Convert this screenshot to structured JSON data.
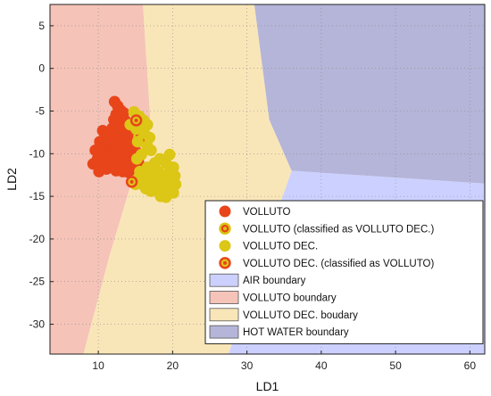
{
  "chart_data": {
    "type": "scatter",
    "xlabel": "LD1",
    "ylabel": "LD2",
    "xlim": [
      3.5,
      62
    ],
    "ylim": [
      -33.5,
      7.5
    ],
    "xticks": [
      10,
      20,
      30,
      40,
      50,
      60
    ],
    "yticks": [
      5,
      0,
      -5,
      -10,
      -15,
      -20,
      -25,
      -30
    ],
    "grid": true,
    "legend_position": "bottom-right",
    "regions": [
      {
        "name": "AIR boundary",
        "color": "#ccd0ff",
        "polygon": [
          [
            27.5,
            -33.5
          ],
          [
            36,
            -12
          ],
          [
            62,
            -13.5
          ],
          [
            62,
            -33.5
          ]
        ]
      },
      {
        "name": "VOLLUTO boundary",
        "color": "#f5c3b8",
        "polygon": [
          [
            3.5,
            7.5
          ],
          [
            16,
            7.5
          ],
          [
            17,
            -6
          ],
          [
            11.5,
            -22
          ],
          [
            8,
            -33.5
          ],
          [
            3.5,
            -33.5
          ]
        ]
      },
      {
        "name": "VOLLUTO DEC. boudary",
        "color": "#f9e6b8",
        "polygon": [
          [
            16,
            7.5
          ],
          [
            31,
            7.5
          ],
          [
            33,
            -6
          ],
          [
            36,
            -12
          ],
          [
            27.5,
            -33.5
          ],
          [
            8,
            -33.5
          ],
          [
            11.5,
            -22
          ],
          [
            17,
            -6
          ]
        ]
      },
      {
        "name": "HOT WATER boundary",
        "color": "#b4b5d8",
        "polygon": [
          [
            31,
            7.5
          ],
          [
            62,
            7.5
          ],
          [
            62,
            -13.5
          ],
          [
            36,
            -12
          ],
          [
            33,
            -6
          ]
        ]
      }
    ],
    "series": [
      {
        "name": "VOLLUTO",
        "color": "#e8451a",
        "points": [
          [
            12.2,
            -3.9
          ],
          [
            12.6,
            -4.4
          ],
          [
            13.0,
            -4.9
          ],
          [
            12.4,
            -5.4
          ],
          [
            13.4,
            -5.2
          ],
          [
            12.1,
            -6.0
          ],
          [
            12.8,
            -6.4
          ],
          [
            13.6,
            -6.1
          ],
          [
            11.9,
            -7.0
          ],
          [
            12.6,
            -7.3
          ],
          [
            13.3,
            -7.0
          ],
          [
            14.0,
            -7.5
          ],
          [
            11.5,
            -7.8
          ],
          [
            12.2,
            -8.2
          ],
          [
            13.0,
            -8.0
          ],
          [
            13.8,
            -8.4
          ],
          [
            14.5,
            -8.0
          ],
          [
            15.0,
            -8.8
          ],
          [
            10.6,
            -7.3
          ],
          [
            10.9,
            -7.8
          ],
          [
            10.2,
            -8.6
          ],
          [
            10.9,
            -9.1
          ],
          [
            11.6,
            -9.0
          ],
          [
            12.3,
            -9.3
          ],
          [
            13.1,
            -9.1
          ],
          [
            13.9,
            -9.4
          ],
          [
            14.6,
            -9.2
          ],
          [
            15.1,
            -9.8
          ],
          [
            9.6,
            -9.6
          ],
          [
            10.4,
            -9.9
          ],
          [
            11.1,
            -10.1
          ],
          [
            11.8,
            -10.2
          ],
          [
            12.6,
            -10.3
          ],
          [
            13.4,
            -10.1
          ],
          [
            14.2,
            -10.5
          ],
          [
            14.9,
            -10.3
          ],
          [
            9.9,
            -10.6
          ],
          [
            10.6,
            -11.0
          ],
          [
            11.4,
            -11.0
          ],
          [
            12.1,
            -11.2
          ],
          [
            12.9,
            -11.1
          ],
          [
            13.6,
            -11.4
          ],
          [
            14.4,
            -11.6
          ],
          [
            9.3,
            -11.2
          ],
          [
            11.1,
            -11.8
          ],
          [
            12.4,
            -12.0
          ],
          [
            13.3,
            -12.1
          ],
          [
            14.1,
            -12.2
          ],
          [
            10.1,
            -12.1
          ],
          [
            15.4,
            -11.0
          ],
          [
            15.6,
            -12.0
          ],
          [
            14.7,
            -8.6
          ],
          [
            11.3,
            -8.4
          ],
          [
            13.0,
            -6.8
          ]
        ]
      },
      {
        "name": "VOLLUTO (classified as VOLLUTO DEC.)",
        "color": "#e8451a",
        "ring_color": "#d9c413",
        "points": [
          [
            15.5,
            -8.0
          ],
          [
            16.4,
            -8.6
          ]
        ]
      },
      {
        "name": "VOLLUTO DEC.",
        "color": "#dcc616",
        "points": [
          [
            14.8,
            -5.1
          ],
          [
            15.5,
            -5.6
          ],
          [
            16.1,
            -6.1
          ],
          [
            16.6,
            -6.6
          ],
          [
            14.3,
            -6.6
          ],
          [
            15.1,
            -7.1
          ],
          [
            16.2,
            -7.6
          ],
          [
            16.9,
            -8.1
          ],
          [
            15.3,
            -8.6
          ],
          [
            16.6,
            -9.1
          ],
          [
            17.1,
            -9.6
          ],
          [
            15.8,
            -10.1
          ],
          [
            15.2,
            -10.6
          ],
          [
            16.6,
            -11.6
          ],
          [
            17.6,
            -11.1
          ],
          [
            18.3,
            -10.6
          ],
          [
            19.1,
            -11.1
          ],
          [
            19.6,
            -10.1
          ],
          [
            15.6,
            -12.1
          ],
          [
            16.1,
            -12.6
          ],
          [
            16.9,
            -12.1
          ],
          [
            17.4,
            -12.6
          ],
          [
            18.1,
            -12.1
          ],
          [
            18.9,
            -12.6
          ],
          [
            19.6,
            -12.1
          ],
          [
            20.1,
            -11.6
          ],
          [
            20.3,
            -12.6
          ],
          [
            15.1,
            -13.1
          ],
          [
            15.9,
            -13.6
          ],
          [
            16.6,
            -13.1
          ],
          [
            17.4,
            -13.6
          ],
          [
            18.1,
            -13.1
          ],
          [
            18.9,
            -13.6
          ],
          [
            19.6,
            -13.1
          ],
          [
            20.4,
            -13.6
          ],
          [
            16.4,
            -14.1
          ],
          [
            17.1,
            -14.4
          ],
          [
            17.9,
            -14.1
          ],
          [
            18.6,
            -14.4
          ],
          [
            19.4,
            -14.1
          ],
          [
            20.1,
            -14.6
          ],
          [
            18.4,
            -15.0
          ],
          [
            19.1,
            -15.1
          ],
          [
            15.0,
            -13.6
          ],
          [
            17.6,
            -11.6
          ],
          [
            16.0,
            -7.0
          ]
        ]
      },
      {
        "name": "VOLLUTO DEC. (classified as VOLLUTO)",
        "color": "#dcc616",
        "ring_color": "#e8451a",
        "points": [
          [
            15.1,
            -6.1
          ],
          [
            14.5,
            -13.3
          ]
        ]
      }
    ]
  }
}
